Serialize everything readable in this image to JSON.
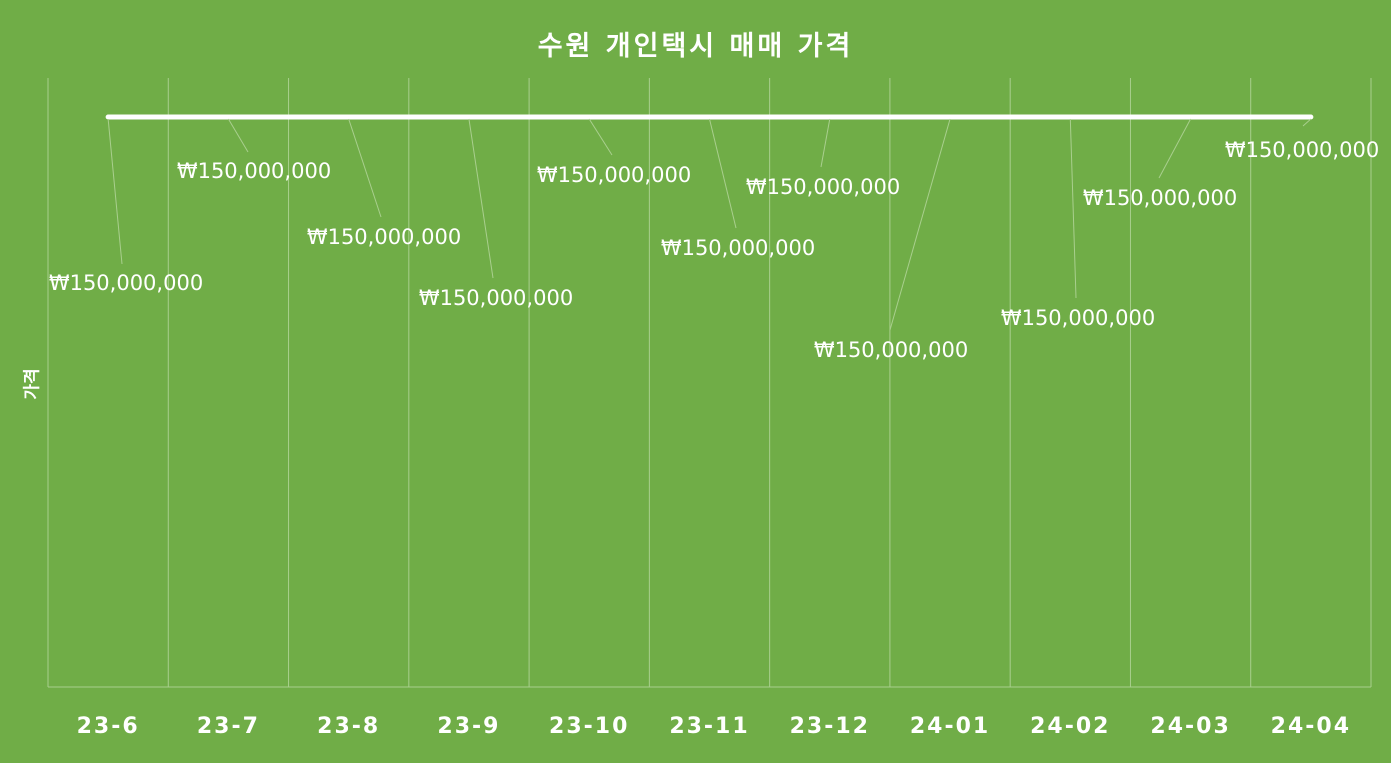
{
  "chart_data": {
    "type": "line",
    "title": "수원 개인택시 매매 가격",
    "xlabel": "",
    "ylabel": "가격",
    "categories": [
      "23-6",
      "23-7",
      "23-8",
      "23-9",
      "23-10",
      "23-11",
      "23-12",
      "24-01",
      "24-02",
      "24-03",
      "24-04"
    ],
    "series": [
      {
        "values": [
          150000000,
          150000000,
          150000000,
          150000000,
          150000000,
          150000000,
          150000000,
          150000000,
          150000000,
          150000000,
          150000000
        ],
        "data_labels": [
          "₩150,000,000",
          "₩150,000,000",
          "₩150,000,000",
          "₩150,000,000",
          "₩150,000,000",
          "₩150,000,000",
          "₩150,000,000",
          "₩150,000,000",
          "₩150,000,000",
          "₩150,000,000",
          "₩150,000,000"
        ]
      }
    ],
    "grid": "vertical",
    "legend": "none"
  },
  "colors": {
    "background": "#70AD47",
    "line": "#FFFFFF",
    "grid": "#A9CF8E",
    "text": "#FFFFFF"
  }
}
